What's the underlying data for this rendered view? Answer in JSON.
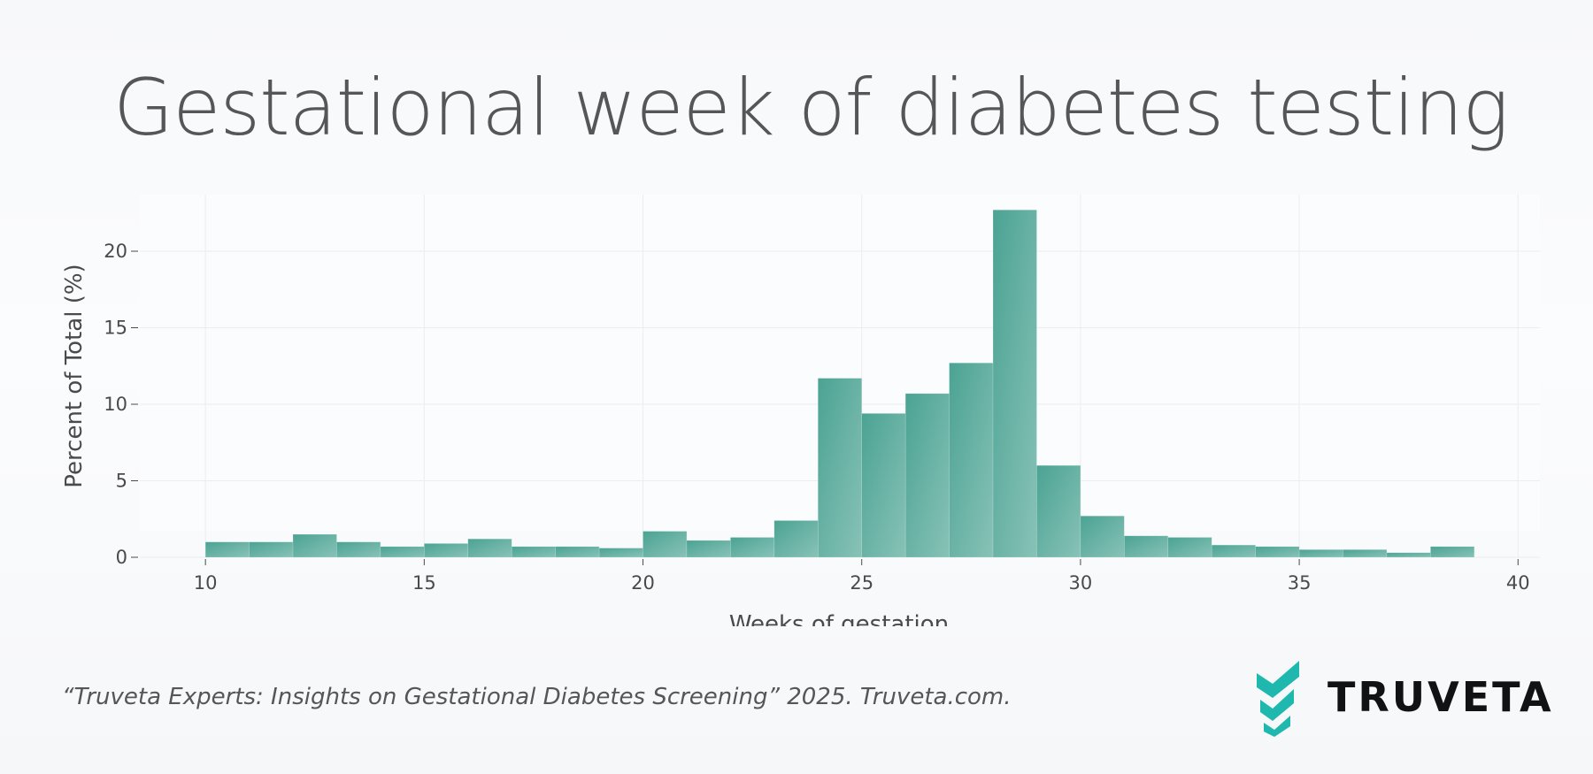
{
  "title": "Gestational week of diabetes testing",
  "citation": "“Truveta Experts: Insights on Gestational Diabetes Screening” 2025. Truveta.com.",
  "logo": {
    "text": "TRUVETA",
    "icon": "truveta-chevron-logo-icon",
    "color": "#1fb8ae"
  },
  "colors": {
    "bar_top": "#4ba393",
    "bar_bottom": "#88c2b7",
    "grid": "#ebedf0",
    "text": "#4a4a4a"
  },
  "chart_data": {
    "type": "bar",
    "title": "Gestational week of diabetes testing",
    "xlabel": "Weeks of gestation",
    "ylabel": "Percent of Total (%)",
    "xlim": [
      8.5,
      40.5
    ],
    "ylim": [
      0,
      23.7
    ],
    "x_ticks": [
      10,
      15,
      20,
      25,
      30,
      35,
      40
    ],
    "y_ticks": [
      0,
      5,
      10,
      15,
      20
    ],
    "bin_width": 1,
    "bin_starts": [
      10,
      11,
      12,
      13,
      14,
      15,
      16,
      17,
      18,
      19,
      20,
      21,
      22,
      23,
      24,
      25,
      26,
      27,
      28,
      29,
      30,
      31,
      32,
      33,
      34,
      35,
      36,
      37,
      38
    ],
    "values": [
      1.0,
      1.0,
      1.5,
      1.0,
      0.7,
      0.9,
      1.2,
      0.7,
      0.7,
      0.6,
      1.7,
      1.1,
      1.3,
      2.4,
      11.7,
      9.4,
      10.7,
      12.7,
      22.7,
      6.0,
      2.7,
      1.4,
      1.3,
      0.8,
      0.7,
      0.5,
      0.5,
      0.3,
      0.7
    ],
    "grid": true,
    "legend": "none"
  }
}
